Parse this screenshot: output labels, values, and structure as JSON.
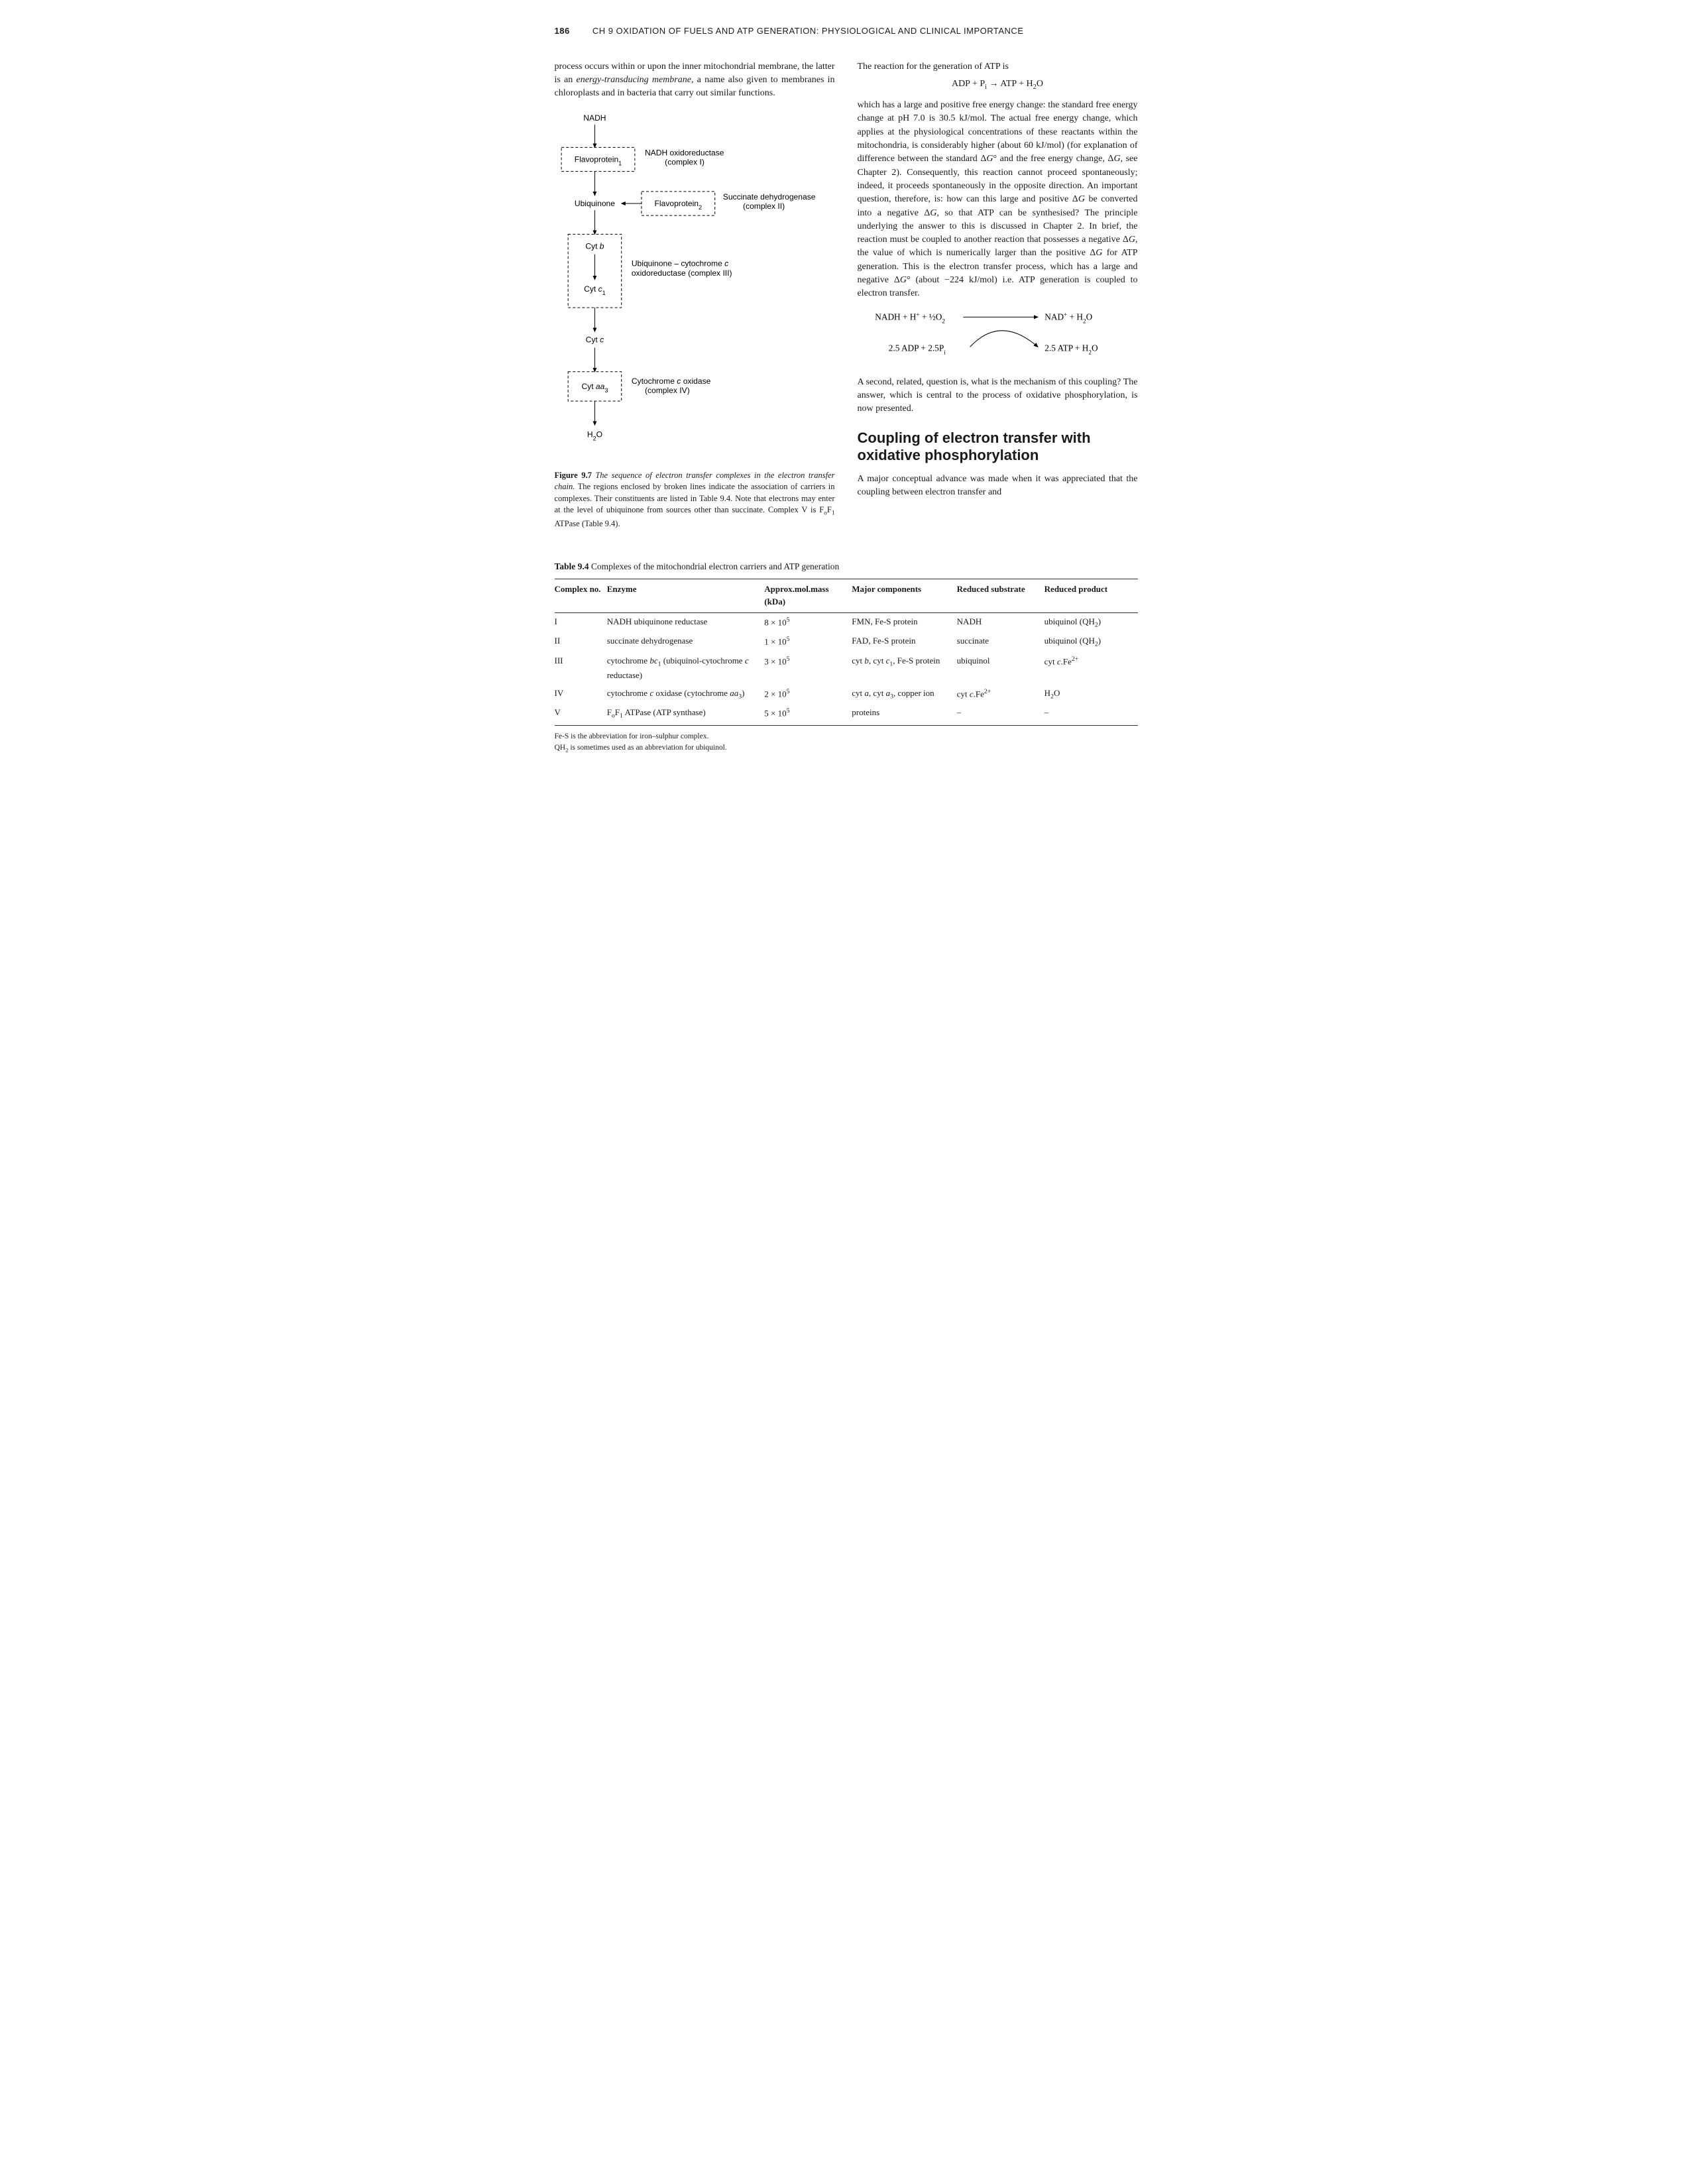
{
  "runningHead": {
    "pageNo": "186",
    "text": "CH 9  OXIDATION OF FUELS AND ATP GENERATION: PHYSIOLOGICAL AND CLINICAL IMPORTANCE"
  },
  "leftCol": {
    "introPara": "process occurs within or upon the inner mitochondrial membrane, the latter is an <i>energy-transducing membrane</i>, a name also given to membranes in chloroplasts and in bacteria that carry out similar functions.",
    "figure": {
      "nodes": {
        "nadh": "NADH",
        "flavo1": "Flavoprotein<tspan baseline-shift=\"sub\" font-size=\"9\">1</tspan>",
        "complexI": "NADH oxidoreductase\n(complex I)",
        "ubi": "Ubiquinone",
        "flavo2": "Flavoprotein<tspan baseline-shift=\"sub\" font-size=\"9\">2</tspan>",
        "complexII": "Succinate dehydrogenase\n(complex II)",
        "cytb": "Cyt <tspan font-style=\"italic\">b</tspan>",
        "complexIII": "Ubiquinone – cytochrome <tspan font-style=\"italic\">c</tspan>\noxidoreductase (complex III)",
        "cytc1": "Cyt <tspan font-style=\"italic\">c</tspan><tspan baseline-shift=\"sub\" font-size=\"9\">1</tspan>",
        "cytc": "Cyt <tspan font-style=\"italic\">c</tspan>",
        "cytaa3": "Cyt <tspan font-style=\"italic\">aa</tspan><tspan baseline-shift=\"sub\" font-size=\"9\">3</tspan>",
        "complexIV": "Cytochrome <tspan font-style=\"italic\">c</tspan> oxidase\n(complex IV)",
        "h2o": "H<tspan baseline-shift=\"sub\" font-size=\"9\">2</tspan>O"
      },
      "caption": "<b>Figure 9.7</b> <i>The sequence of electron transfer complexes in the electron transfer chain.</i> The regions enclosed by broken lines indicate the association of carriers in complexes. Their constituents are listed in Table 9.4. Note that electrons may enter at the level of ubiquinone from sources other than succinate. Complex V is F<sub>o</sub>F<sub>1</sub> ATPase (Table 9.4)."
    }
  },
  "rightCol": {
    "lead": "The reaction for the generation of ATP is",
    "eqn": "ADP + P<sub>i</sub> → ATP + H<sub>2</sub>O",
    "para1": "which has a large and positive free energy change: the standard free energy change at pH 7.0 is 30.5 kJ/mol. The actual free energy change, which applies at the physiological concentrations of these reactants within the mitochondria, is considerably higher (about 60 kJ/mol) (for explanation of difference between the standard Δ<i>G</i>° and the free energy change, Δ<i>G</i>, see Chapter 2). Consequently, this reaction cannot proceed spontaneously; indeed, it proceeds spontaneously in the opposite direction. An important question, therefore, is: how can this large and positive Δ<i>G</i> be converted into a negative Δ<i>G</i>, so that ATP can be synthesised? The principle underlying the answer to this is discussed in Chapter 2. In brief, the reaction must be coupled to another reaction that possesses a negative Δ<i>G</i>, the value of which is numerically larger than the positive Δ<i>G</i> for ATP generation. This is the electron transfer process, which has a large and negative Δ<i>G</i>° (about −224 kJ/mol) i.e. ATP generation is coupled to electron transfer.",
    "coupling": {
      "topLeft": "NADH + H<tspan baseline-shift=\"super\" font-size=\"9\">+</tspan> + ½O<tspan baseline-shift=\"sub\" font-size=\"9\">2</tspan>",
      "topRight": "NAD<tspan baseline-shift=\"super\" font-size=\"9\">+</tspan> + H<tspan baseline-shift=\"sub\" font-size=\"9\">2</tspan>O",
      "botLeft": "2.5 ADP + 2.5P<tspan baseline-shift=\"sub\" font-size=\"9\">i</tspan>",
      "botRight": "2.5 ATP + H<tspan baseline-shift=\"sub\" font-size=\"9\">2</tspan>O"
    },
    "para2": "A second, related, question is, what is the mechanism of this coupling? The answer, which is central to the process of oxidative phosphorylation, is now presented.",
    "h2": "Coupling of electron transfer with oxidative phosphorylation",
    "para3": "A major conceptual advance was made when it was appreciated that the coupling between electron transfer and"
  },
  "table": {
    "title": "<b>Table 9.4</b> Complexes of the mitochondrial electron carriers and ATP generation",
    "columns": [
      "Complex no.",
      "Enzyme",
      "Approx.mol.mass (kDa)",
      "Major components",
      "Reduced substrate",
      "Reduced product"
    ],
    "rows": [
      [
        "I",
        "NADH ubiquinone reductase",
        "8 × 10<sup>5</sup>",
        "FMN, Fe-S protein",
        "NADH",
        "ubiquinol (QH<sub>2</sub>)"
      ],
      [
        "II",
        "succinate dehydrogenase",
        "1 × 10<sup>5</sup>",
        "FAD, Fe-S protein",
        "succinate",
        "ubiquinol (QH<sub>2</sub>)"
      ],
      [
        "III",
        "cytochrome <i>bc</i><sub>1</sub> (ubiquinol-cytochrome <i>c</i> reductase)",
        "3 × 10<sup>5</sup>",
        "cyt <i>b</i>, cyt <i>c</i><sub>1</sub>, Fe-S protein",
        "ubiquinol",
        "cyt <i>c</i>.Fe<sup>2+</sup>"
      ],
      [
        "IV",
        "cytochrome <i>c</i> oxidase (cytochrome <i>aa</i><sub>3</sub>)",
        "2 × 10<sup>5</sup>",
        "cyt <i>a</i>, cyt <i>a</i><sub>3</sub>, copper ion",
        "cyt <i>c</i>.Fe<sup>2+</sup>",
        "H<sub>2</sub>O"
      ],
      [
        "V",
        "F<sub>o</sub>F<sub>1</sub> ATPase (ATP synthase)",
        "5 × 10<sup>5</sup>",
        "proteins",
        "–",
        "–"
      ]
    ],
    "notes": [
      "Fe-S is the abbreviation for iron–sulphur complex.",
      "QH<sub>2</sub> is sometimes used as an abbreviation for ubiquinol."
    ]
  },
  "style": {
    "pageBg": "#ffffff",
    "textColor": "#1a1a1a",
    "ruleColor": "#333333",
    "bodyFont": "Georgia, 'Times New Roman', serif",
    "sansFont": "'Trebuchet MS', sans-serif",
    "bodyFontSize": 14,
    "h2FontSize": 22,
    "captionFontSize": 12.5,
    "tableFontSize": 13,
    "figure": {
      "stroke": "#000000",
      "dashPattern": "4,3",
      "fontSize": 12
    }
  }
}
